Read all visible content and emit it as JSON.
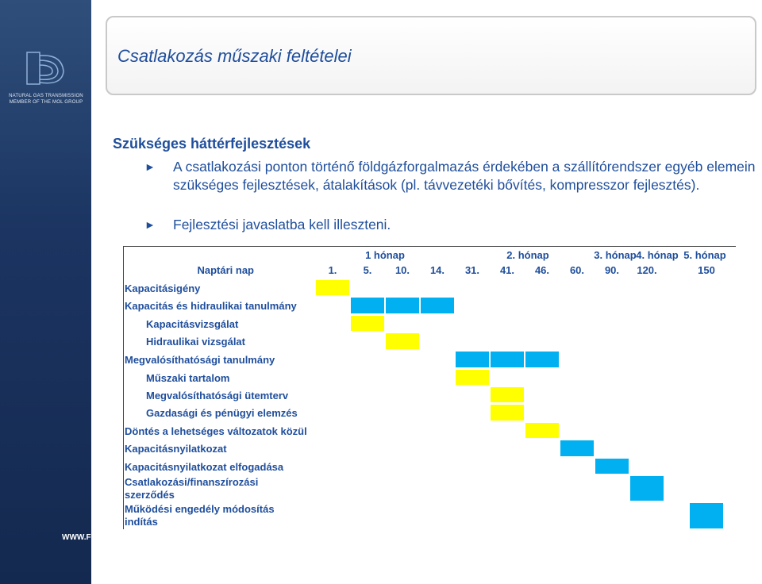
{
  "sidebar": {
    "logo_line1": "NATURAL GAS TRANSMISSION",
    "logo_line2": "MEMBER OF THE MOL GROUP",
    "website": "WWW.FGSZ.HU"
  },
  "title": "Csatlakozás műszaki feltételei",
  "heading": "Szükséges háttérfejlesztések",
  "bullets": [
    "A csatlakozási ponton történő földgázforgalmazás érdekében a szállítórendszer egyéb elemein szükséges fejlesztések, átalakítások (pl. távvezetéki bővítés, kompresszor fejlesztés).",
    "Fejlesztési javaslatba kell illeszteni."
  ],
  "table": {
    "months": [
      "1 hónap",
      "2. hónap",
      "3. hónap",
      "4. hónap",
      "5. hónap"
    ],
    "day_header": "Naptári nap",
    "days": [
      "1.",
      "5.",
      "10.",
      "14.",
      "31.",
      "41.",
      "46.",
      "60.",
      "90.",
      "120.",
      "150"
    ],
    "colors": {
      "yellow": "#ffff00",
      "blue": "#00b0f0"
    },
    "rows": [
      {
        "label": "Kapacitásigény",
        "bars": [
          {
            "start": 0,
            "span": 1,
            "color": "yellow"
          }
        ]
      },
      {
        "label": "Kapacitás és hidraulikai tanulmány",
        "bars": [
          {
            "start": 1,
            "span": 3,
            "color": "blue"
          }
        ]
      },
      {
        "label": "Kapacitásvizsgálat",
        "indent": true,
        "bars": [
          {
            "start": 1,
            "span": 1,
            "color": "yellow"
          }
        ]
      },
      {
        "label": "Hidraulikai vizsgálat",
        "indent": true,
        "bars": [
          {
            "start": 2,
            "span": 1,
            "color": "yellow"
          }
        ]
      },
      {
        "label": "Megvalósíthatósági tanulmány",
        "bars": [
          {
            "start": 4,
            "span": 3,
            "color": "blue"
          }
        ]
      },
      {
        "label": "Műszaki tartalom",
        "indent": true,
        "bars": [
          {
            "start": 4,
            "span": 1,
            "color": "yellow"
          }
        ]
      },
      {
        "label": "Megvalósíthatósági ütemterv",
        "indent": true,
        "bars": [
          {
            "start": 5,
            "span": 1,
            "color": "yellow"
          }
        ]
      },
      {
        "label": "Gazdasági és pénügyi elemzés",
        "indent": true,
        "bars": [
          {
            "start": 5,
            "span": 1,
            "color": "yellow"
          }
        ]
      },
      {
        "label": "Döntés a lehetséges változatok közül",
        "bars": [
          {
            "start": 6,
            "span": 1,
            "color": "yellow"
          }
        ]
      },
      {
        "label": "Kapacitásnyilatkozat",
        "bars": [
          {
            "start": 7,
            "span": 1,
            "color": "blue"
          }
        ]
      },
      {
        "label": "Kapacitásnyilatkozat elfogadása",
        "bars": [
          {
            "start": 8,
            "span": 1,
            "color": "blue"
          }
        ]
      },
      {
        "label": "Csatlakozási/finanszírozási szerződés",
        "bars": [
          {
            "start": 9,
            "span": 1,
            "color": "blue"
          }
        ]
      },
      {
        "label": "Működési engedély módosítás indítás",
        "bars": [
          {
            "start": 10,
            "span": 1,
            "color": "blue"
          }
        ]
      }
    ]
  }
}
